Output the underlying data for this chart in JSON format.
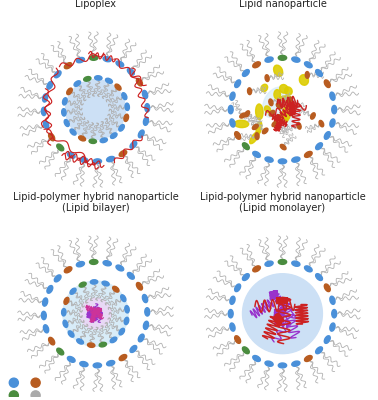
{
  "titles": [
    "Lipoplex",
    "Lipid nanoparticle",
    "Lipid-polymer hybrid nanoparticle\n(Lipid bilayer)",
    "Lipid-polymer hybrid nanoparticle\n(Lipid monolayer)"
  ],
  "bg_color": "#ffffff",
  "lipid_head_blue": "#4a90d9",
  "lipid_head_orange": "#b85c20",
  "lipid_head_green": "#4a8c3f",
  "tail_color": "#b0b0b0",
  "core_blue_light": "#cce0f5",
  "mRNA_red": "#cc2222",
  "polymer_purple": "#9933cc",
  "polymer_pink": "#cc3399",
  "helper_yellow": "#ddcc00",
  "text_color": "#222222",
  "title_fontsize": 7.0,
  "inner_blue_light": "#d8ecf8"
}
